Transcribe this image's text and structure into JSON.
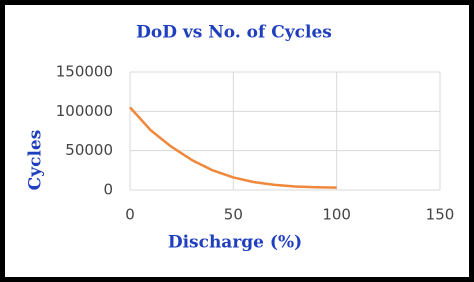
{
  "chart_data": {
    "type": "line",
    "title": "DoD vs No. of Cycles",
    "x_label": "Discharge (%)",
    "y_label": "Cycles",
    "x": [
      0,
      10,
      20,
      30,
      40,
      50,
      60,
      70,
      80,
      90,
      100
    ],
    "series": [
      {
        "name": "Cycles",
        "color": "#f0883c",
        "values": [
          105000,
          76000,
          55000,
          38000,
          25000,
          16000,
          10000,
          6500,
          4500,
          3500,
          3000
        ]
      }
    ],
    "xlim": [
      0,
      150
    ],
    "xticks": [
      0,
      50,
      100,
      150
    ],
    "ylim": [
      0,
      150000
    ],
    "yticks": [
      0,
      50000,
      100000,
      150000
    ],
    "grid": true
  }
}
